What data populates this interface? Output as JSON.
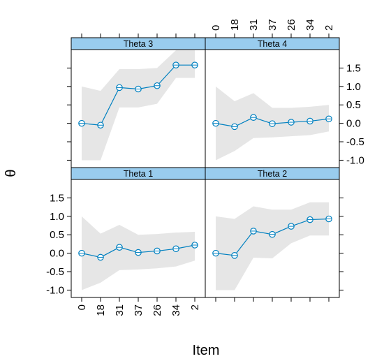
{
  "chart_data": {
    "type": "line",
    "title": "",
    "xlabel": "Item",
    "ylabel": "θ",
    "categories": [
      "0",
      "18",
      "31",
      "37",
      "26",
      "34",
      "2"
    ],
    "yticks": [
      "-1.0",
      "-0.5",
      "0.0",
      "0.5",
      "1.0",
      "1.5"
    ],
    "ylim": [
      -1.2,
      2.0
    ],
    "grid": false,
    "colors": {
      "line": "#0080c0",
      "band": "#e6e6e6",
      "strip": "#99ccee",
      "frame": "#000000"
    },
    "panels": [
      {
        "name": "Theta 3",
        "values": [
          0.0,
          -0.05,
          0.97,
          0.93,
          1.02,
          1.58,
          1.58
        ],
        "lower": [
          -1.0,
          -1.0,
          0.43,
          0.43,
          0.53,
          1.23,
          1.23
        ],
        "upper": [
          1.0,
          0.88,
          1.47,
          1.47,
          1.5,
          1.98,
          1.98
        ]
      },
      {
        "name": "Theta 4",
        "values": [
          0.0,
          -0.09,
          0.16,
          -0.01,
          0.03,
          0.06,
          0.12
        ],
        "lower": [
          -1.0,
          -0.75,
          -0.4,
          -0.38,
          -0.35,
          -0.32,
          -0.22
        ],
        "upper": [
          1.0,
          0.6,
          0.82,
          0.42,
          0.42,
          0.45,
          0.5
        ]
      },
      {
        "name": "Theta 1",
        "values": [
          0.0,
          -0.11,
          0.16,
          0.02,
          0.06,
          0.12,
          0.22
        ],
        "lower": [
          -1.0,
          -0.8,
          -0.46,
          -0.44,
          -0.41,
          -0.36,
          -0.2
        ],
        "upper": [
          1.0,
          0.53,
          0.77,
          0.5,
          0.52,
          0.56,
          0.58
        ]
      },
      {
        "name": "Theta 2",
        "values": [
          0.0,
          -0.06,
          0.6,
          0.51,
          0.73,
          0.91,
          0.93
        ],
        "lower": [
          -1.0,
          -1.0,
          -0.12,
          -0.14,
          0.27,
          0.48,
          0.48
        ],
        "upper": [
          1.0,
          0.93,
          1.27,
          1.18,
          1.18,
          1.38,
          1.38
        ]
      }
    ]
  }
}
